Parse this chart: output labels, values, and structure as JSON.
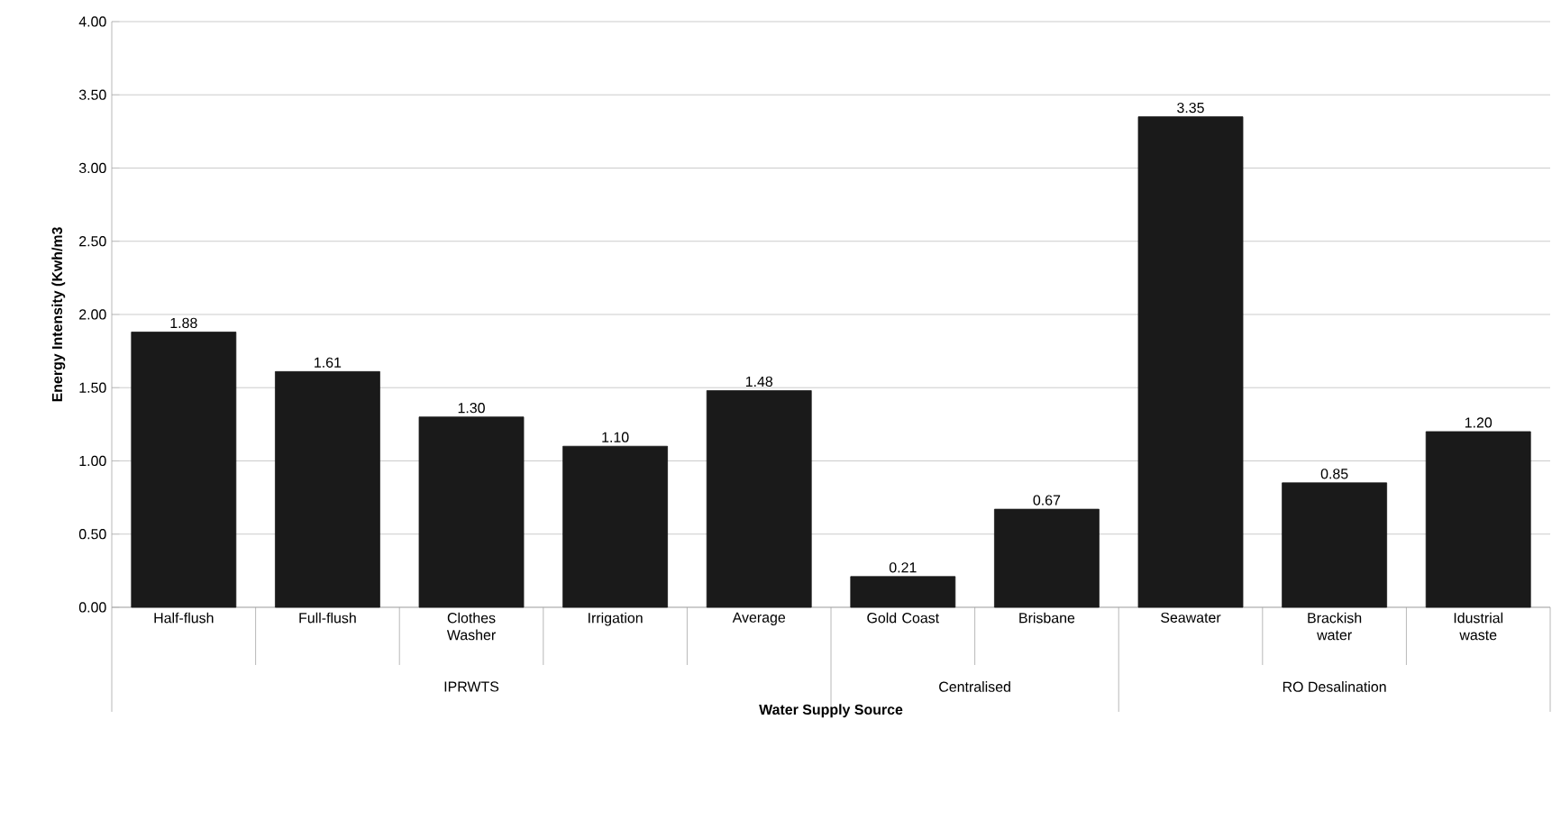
{
  "chart_data": {
    "type": "bar",
    "xlabel": "Water Supply Source",
    "ylabel": "Energy Intensity (Kwh/m3",
    "categories": [
      "Half-flush",
      "Full-flush",
      "Clothes Washer",
      "Irrigation",
      "Average",
      "Gold Coast",
      "Brisbane",
      "Seawater",
      "Brackish water",
      "Idustrial waste"
    ],
    "values": [
      1.88,
      1.61,
      1.3,
      1.1,
      1.48,
      0.21,
      0.67,
      3.35,
      0.85,
      1.2
    ],
    "value_labels": [
      "1.88",
      "1.61",
      "1.30",
      "1.10",
      "1.48",
      "0.21",
      "0.67",
      "3.35",
      "0.85",
      "1.20"
    ],
    "color": "#1a1a1a",
    "ylim": [
      0,
      4
    ],
    "yticks": [
      {
        "value": 0,
        "label": "0.00"
      },
      {
        "value": 0.5,
        "label": "0.50"
      },
      {
        "value": 1,
        "label": "1.00"
      },
      {
        "value": 1.5,
        "label": "1.50"
      },
      {
        "value": 2,
        "label": "2.00"
      },
      {
        "value": 2.5,
        "label": "2.50"
      },
      {
        "value": 3,
        "label": "3.00"
      },
      {
        "value": 3.5,
        "label": "3.50"
      },
      {
        "value": 4,
        "label": "4.00"
      }
    ],
    "grid": "y",
    "annotations": [
      "IPRWTS",
      "Centralised",
      "RO Desalination"
    ]
  }
}
